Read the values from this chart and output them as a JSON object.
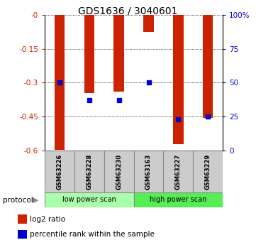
{
  "title": "GDS1636 / 3040601",
  "samples": [
    "GSM63226",
    "GSM63228",
    "GSM63230",
    "GSM63163",
    "GSM63227",
    "GSM63229"
  ],
  "log2_ratio": [
    -0.595,
    -0.345,
    -0.34,
    -0.075,
    -0.57,
    -0.455
  ],
  "percentile_rank": [
    50,
    37,
    37,
    50,
    23,
    25
  ],
  "bar_color": "#cc2200",
  "dot_color": "#0000cc",
  "ylim_left": [
    -0.6,
    0.0
  ],
  "yticks_left": [
    0.0,
    -0.15,
    -0.3,
    -0.45,
    -0.6
  ],
  "ytick_labels_left": [
    "-0",
    "-0.15",
    "-0.3",
    "-0.45",
    "-0.6"
  ],
  "ytick_labels_right": [
    "100%",
    "75",
    "50",
    "25",
    "0"
  ],
  "protocols": [
    "low power scan",
    "low power scan",
    "low power scan",
    "high power scan",
    "high power scan",
    "high power scan"
  ],
  "protocol_color_low": "#aaffaa",
  "protocol_color_high": "#55ee55",
  "legend_log2": "log2 ratio",
  "legend_pct": "percentile rank within the sample",
  "bar_color_legend": "#cc2200",
  "dot_color_legend": "#0000cc",
  "left_axis_color": "#cc2200",
  "right_axis_color": "#0000cc",
  "sample_box_color": "#cccccc",
  "bar_width": 0.35
}
